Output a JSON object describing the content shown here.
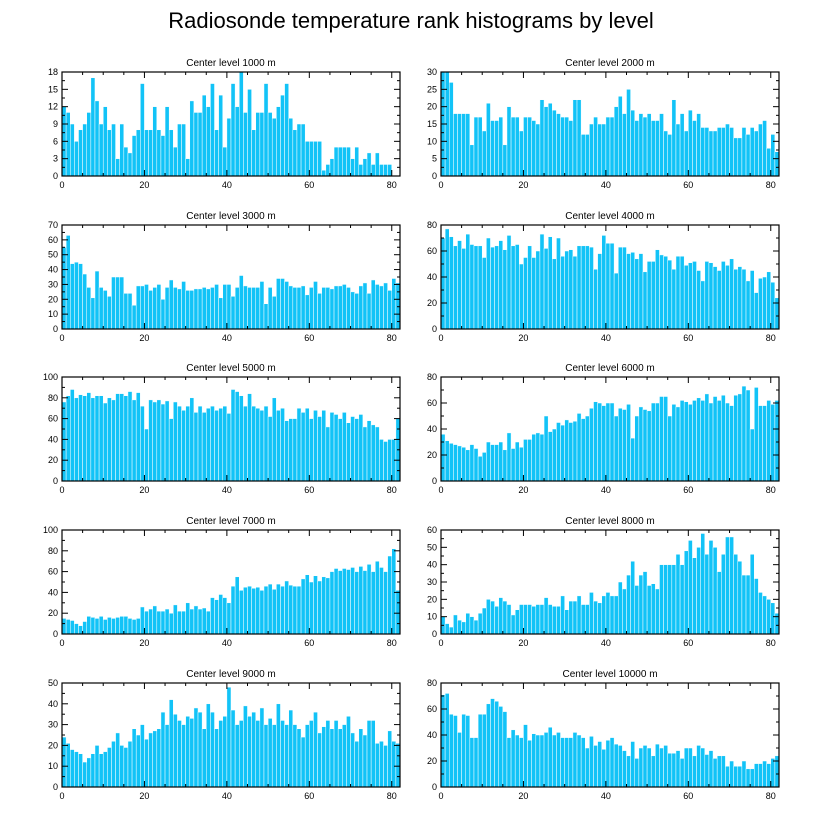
{
  "title": "Radiosonde temperature rank histograms by level",
  "colors": {
    "bar": "#12C3F7",
    "axis": "#000000",
    "bar_edge": "#ffffff"
  },
  "chart_data": [
    {
      "type": "bar",
      "title": "Center level 1000 m",
      "xlim": [
        0,
        82
      ],
      "ylim": [
        0,
        18
      ],
      "xticks": [
        0,
        20,
        40,
        60,
        80
      ],
      "yticks": [
        0,
        3,
        6,
        9,
        12,
        15,
        18
      ],
      "yaxis_side": "left",
      "values": [
        12,
        11,
        9,
        6,
        8,
        9,
        11,
        17,
        13,
        9,
        12,
        8,
        9,
        3,
        9,
        5,
        4,
        7,
        8,
        16,
        8,
        8,
        12,
        8,
        7,
        12,
        8,
        5,
        9,
        9,
        3,
        13,
        11,
        11,
        14,
        12,
        16,
        8,
        14,
        5,
        10,
        16,
        12,
        18,
        11,
        15,
        8,
        11,
        11,
        16,
        11,
        10,
        12,
        14,
        16,
        10,
        8,
        9,
        9,
        6,
        6,
        6,
        6,
        1,
        2,
        3,
        5,
        5,
        5,
        5,
        3,
        5,
        2,
        3,
        4,
        2,
        4,
        2,
        2,
        2
      ],
      "xlabel": "",
      "ylabel": ""
    },
    {
      "type": "bar",
      "title": "Center level 2000 m",
      "xlim": [
        0,
        82
      ],
      "ylim": [
        0,
        30
      ],
      "xticks": [
        0,
        20,
        40,
        60,
        80
      ],
      "yticks": [
        0,
        5,
        10,
        15,
        20,
        25,
        30
      ],
      "yaxis_side": "right",
      "values": [
        30,
        30,
        27,
        18,
        18,
        18,
        18,
        9,
        17,
        17,
        13,
        21,
        16,
        16,
        17,
        9,
        20,
        17,
        17,
        13,
        17,
        17,
        16,
        15,
        22,
        20,
        21,
        19,
        18,
        17,
        17,
        16,
        22,
        22,
        12,
        12,
        15,
        17,
        15,
        15,
        17,
        17,
        20,
        23,
        18,
        25,
        19,
        16,
        18,
        17,
        18,
        16,
        16,
        18,
        13,
        12,
        22,
        15,
        18,
        13,
        19,
        16,
        18,
        14,
        14,
        13,
        13,
        14,
        14,
        15,
        14,
        11,
        11,
        14,
        12,
        14,
        13,
        15,
        16,
        8,
        12,
        7
      ],
      "xlabel": "",
      "ylabel": ""
    },
    {
      "type": "bar",
      "title": "Center level 3000 m",
      "xlim": [
        0,
        82
      ],
      "ylim": [
        0,
        70
      ],
      "xticks": [
        0,
        20,
        40,
        60,
        80
      ],
      "yticks": [
        0,
        10,
        20,
        30,
        40,
        50,
        60,
        70
      ],
      "yaxis_side": "left",
      "values": [
        55,
        63,
        44,
        45,
        44,
        37,
        28,
        21,
        39,
        28,
        26,
        22,
        35,
        35,
        35,
        24,
        24,
        16,
        29,
        29,
        30,
        26,
        28,
        30,
        20,
        28,
        33,
        28,
        27,
        32,
        26,
        26,
        27,
        27,
        28,
        27,
        28,
        30,
        21,
        30,
        30,
        22,
        28,
        36,
        29,
        28,
        28,
        28,
        32,
        17,
        28,
        22,
        34,
        34,
        32,
        29,
        28,
        28,
        29,
        23,
        28,
        32,
        24,
        28,
        28,
        27,
        29,
        29,
        30,
        28,
        25,
        24,
        29,
        31,
        24,
        33,
        30,
        29,
        31,
        26,
        34,
        31
      ],
      "xlabel": "",
      "ylabel": ""
    },
    {
      "type": "bar",
      "title": "Center level 4000 m",
      "xlim": [
        0,
        82
      ],
      "ylim": [
        0,
        80
      ],
      "xticks": [
        0,
        20,
        40,
        60,
        80
      ],
      "yticks": [
        0,
        20,
        40,
        60,
        80
      ],
      "yaxis_side": "right",
      "values": [
        70,
        77,
        71,
        64,
        68,
        62,
        73,
        65,
        64,
        64,
        55,
        70,
        63,
        64,
        68,
        61,
        72,
        64,
        65,
        50,
        55,
        64,
        55,
        60,
        73,
        62,
        71,
        54,
        70,
        56,
        60,
        61,
        56,
        64,
        64,
        64,
        63,
        46,
        58,
        72,
        66,
        66,
        43,
        63,
        63,
        58,
        59,
        54,
        58,
        44,
        52,
        52,
        61,
        57,
        56,
        53,
        46,
        56,
        56,
        49,
        51,
        52,
        45,
        37,
        52,
        51,
        48,
        45,
        52,
        49,
        54,
        46,
        48,
        46,
        37,
        45,
        28,
        39,
        40,
        44,
        36,
        24
      ],
      "xlabel": "",
      "ylabel": ""
    },
    {
      "type": "bar",
      "title": "Center level 5000 m",
      "xlim": [
        0,
        82
      ],
      "ylim": [
        0,
        100
      ],
      "xticks": [
        0,
        20,
        40,
        60,
        80
      ],
      "yticks": [
        0,
        20,
        40,
        60,
        80,
        100
      ],
      "yaxis_side": "left",
      "values": [
        76,
        82,
        88,
        80,
        83,
        82,
        85,
        80,
        82,
        82,
        75,
        80,
        78,
        84,
        84,
        82,
        86,
        78,
        85,
        72,
        50,
        78,
        76,
        78,
        74,
        77,
        60,
        76,
        72,
        68,
        72,
        80,
        66,
        72,
        66,
        70,
        72,
        68,
        70,
        72,
        65,
        88,
        86,
        82,
        72,
        84,
        72,
        70,
        68,
        72,
        62,
        80,
        68,
        70,
        58,
        60,
        60,
        70,
        66,
        70,
        60,
        68,
        62,
        68,
        52,
        66,
        64,
        60,
        66,
        56,
        62,
        60,
        64,
        52,
        58,
        54,
        52,
        40,
        38,
        40,
        40,
        60
      ],
      "xlabel": "",
      "ylabel": ""
    },
    {
      "type": "bar",
      "title": "Center level 6000 m",
      "xlim": [
        0,
        82
      ],
      "ylim": [
        0,
        80
      ],
      "xticks": [
        0,
        20,
        40,
        60,
        80
      ],
      "yticks": [
        0,
        20,
        40,
        60,
        80
      ],
      "yaxis_side": "right",
      "values": [
        36,
        31,
        29,
        28,
        27,
        26,
        24,
        28,
        25,
        19,
        22,
        30,
        28,
        28,
        30,
        24,
        37,
        25,
        30,
        26,
        32,
        32,
        36,
        37,
        36,
        50,
        38,
        40,
        45,
        43,
        47,
        45,
        46,
        52,
        48,
        50,
        56,
        61,
        60,
        58,
        60,
        60,
        50,
        56,
        55,
        59,
        33,
        50,
        57,
        55,
        54,
        60,
        60,
        65,
        65,
        50,
        59,
        57,
        62,
        61,
        59,
        62,
        64,
        62,
        67,
        60,
        65,
        62,
        66,
        60,
        58,
        66,
        67,
        73,
        70,
        40,
        72,
        58,
        58,
        62,
        59,
        62
      ],
      "xlabel": "",
      "ylabel": ""
    },
    {
      "type": "bar",
      "title": "Center level 7000 m",
      "xlim": [
        0,
        82
      ],
      "ylim": [
        0,
        100
      ],
      "xticks": [
        0,
        20,
        40,
        60,
        80
      ],
      "yticks": [
        0,
        20,
        40,
        60,
        80,
        100
      ],
      "yaxis_side": "left",
      "values": [
        15,
        14,
        13,
        10,
        8,
        12,
        17,
        16,
        15,
        17,
        14,
        16,
        15,
        16,
        17,
        17,
        15,
        14,
        15,
        26,
        22,
        24,
        27,
        22,
        22,
        24,
        20,
        28,
        22,
        22,
        30,
        24,
        27,
        24,
        25,
        22,
        35,
        33,
        38,
        35,
        30,
        46,
        55,
        42,
        45,
        46,
        44,
        45,
        42,
        46,
        48,
        43,
        48,
        46,
        51,
        47,
        46,
        46,
        53,
        57,
        50,
        56,
        51,
        55,
        54,
        60,
        63,
        61,
        63,
        62,
        64,
        60,
        65,
        61,
        67,
        60,
        70,
        64,
        60,
        75,
        82,
        42
      ],
      "xlabel": "",
      "ylabel": ""
    },
    {
      "type": "bar",
      "title": "Center level 8000 m",
      "xlim": [
        0,
        82
      ],
      "ylim": [
        0,
        60
      ],
      "xticks": [
        0,
        20,
        40,
        60,
        80
      ],
      "yticks": [
        0,
        10,
        20,
        30,
        40,
        50,
        60
      ],
      "yaxis_side": "right",
      "values": [
        10,
        6,
        4,
        11,
        8,
        7,
        12,
        10,
        8,
        12,
        15,
        20,
        19,
        16,
        21,
        19,
        17,
        11,
        14,
        17,
        17,
        17,
        16,
        17,
        17,
        21,
        17,
        16,
        16,
        22,
        14,
        19,
        19,
        22,
        17,
        17,
        24,
        19,
        18,
        22,
        24,
        22,
        22,
        30,
        26,
        34,
        42,
        28,
        34,
        36,
        28,
        29,
        26,
        40,
        40,
        40,
        40,
        46,
        40,
        48,
        54,
        44,
        50,
        58,
        46,
        54,
        50,
        36,
        46,
        56,
        56,
        46,
        42,
        34,
        34,
        46,
        32,
        24,
        22,
        20,
        18,
        12
      ],
      "xlabel": "",
      "ylabel": ""
    },
    {
      "type": "bar",
      "title": "Center level 9000 m",
      "xlim": [
        0,
        82
      ],
      "ylim": [
        0,
        50
      ],
      "xticks": [
        0,
        20,
        40,
        60,
        80
      ],
      "yticks": [
        0,
        10,
        20,
        30,
        40,
        50
      ],
      "yaxis_side": "left",
      "values": [
        24,
        21,
        18,
        17,
        16,
        12,
        14,
        16,
        20,
        16,
        17,
        19,
        22,
        26,
        20,
        19,
        22,
        28,
        25,
        30,
        23,
        26,
        27,
        28,
        36,
        30,
        42,
        35,
        32,
        30,
        34,
        33,
        38,
        36,
        28,
        40,
        36,
        28,
        32,
        34,
        48,
        37,
        30,
        32,
        39,
        34,
        36,
        32,
        38,
        30,
        33,
        30,
        40,
        32,
        30,
        37,
        30,
        28,
        24,
        30,
        32,
        36,
        26,
        29,
        32,
        28,
        32,
        28,
        30,
        34,
        26,
        22,
        28,
        25,
        32,
        32,
        21,
        22,
        20,
        27,
        22,
        21
      ],
      "xlabel": "",
      "ylabel": ""
    },
    {
      "type": "bar",
      "title": "Center level 10000 m",
      "xlim": [
        0,
        82
      ],
      "ylim": [
        0,
        80
      ],
      "xticks": [
        0,
        20,
        40,
        60,
        80
      ],
      "yticks": [
        0,
        20,
        40,
        60,
        80
      ],
      "yaxis_side": "right",
      "values": [
        71,
        72,
        56,
        55,
        42,
        56,
        55,
        38,
        38,
        56,
        56,
        64,
        68,
        66,
        62,
        58,
        38,
        44,
        40,
        38,
        48,
        36,
        41,
        40,
        40,
        42,
        46,
        40,
        42,
        38,
        38,
        38,
        42,
        40,
        38,
        30,
        39,
        32,
        35,
        29,
        36,
        38,
        33,
        32,
        28,
        24,
        35,
        22,
        30,
        32,
        30,
        24,
        33,
        30,
        32,
        26,
        26,
        28,
        22,
        30,
        30,
        24,
        32,
        30,
        25,
        28,
        22,
        24,
        24,
        16,
        20,
        16,
        16,
        20,
        14,
        14,
        18,
        18,
        20,
        18,
        22,
        24
      ],
      "xlabel": "",
      "ylabel": ""
    }
  ]
}
